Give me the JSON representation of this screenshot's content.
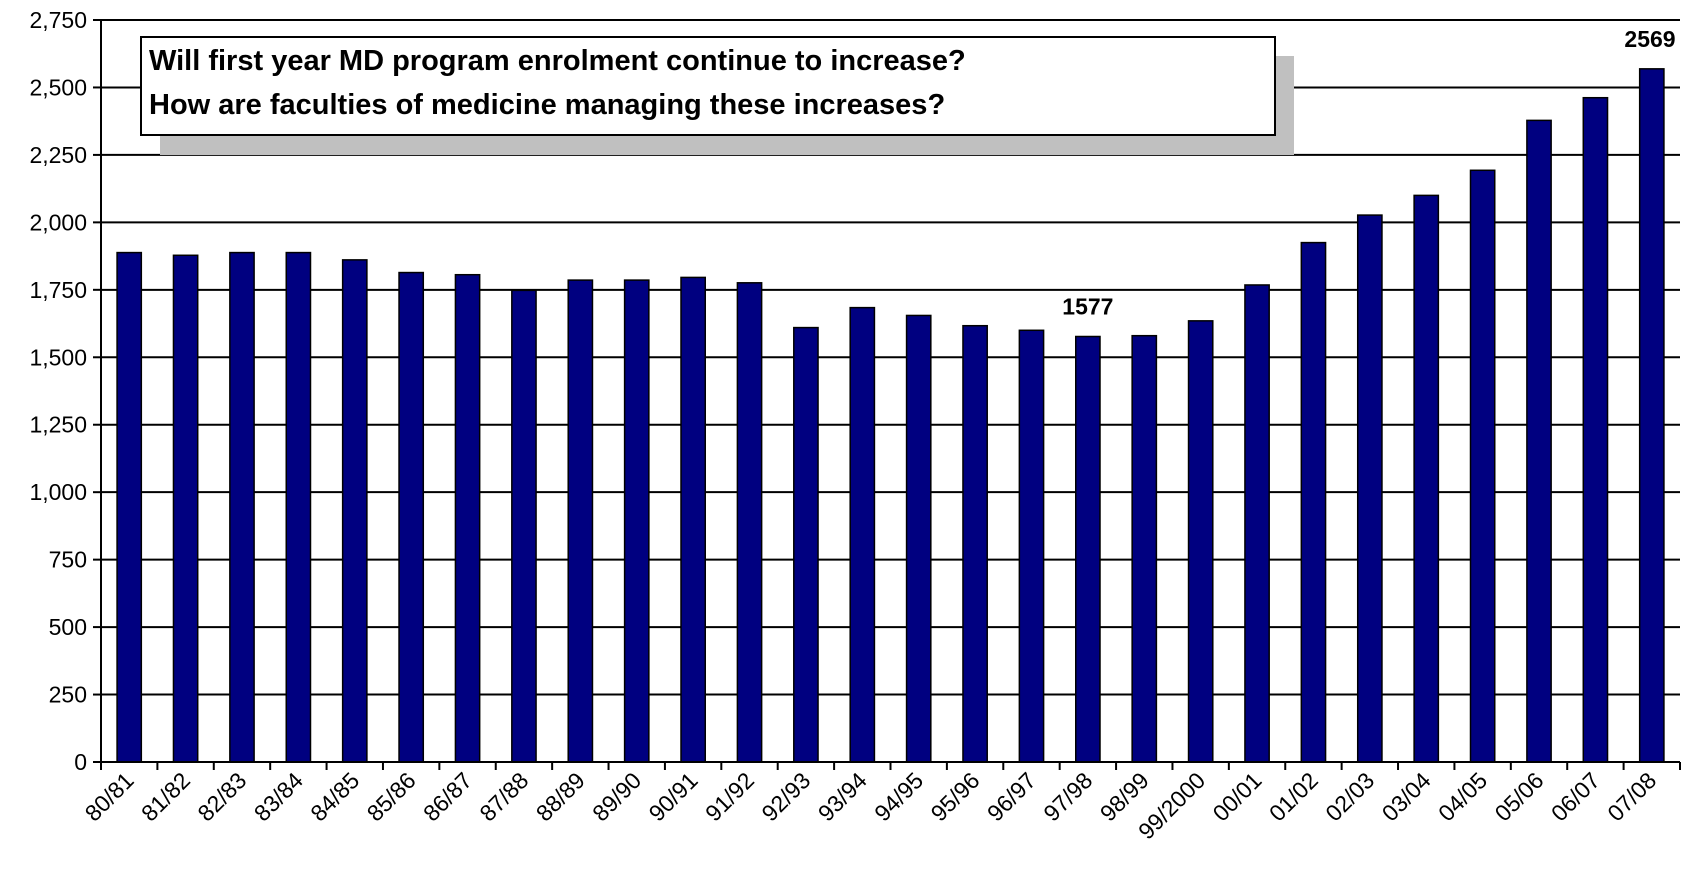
{
  "chart_data": {
    "type": "bar",
    "categories": [
      "80/81",
      "81/82",
      "82/83",
      "83/84",
      "84/85",
      "85/86",
      "86/87",
      "87/88",
      "88/89",
      "89/90",
      "90/91",
      "91/92",
      "92/93",
      "93/94",
      "94/95",
      "95/96",
      "96/97",
      "97/98",
      "98/99",
      "99/2000",
      "00/01",
      "01/02",
      "02/03",
      "03/04",
      "04/05",
      "05/06",
      "06/07",
      "07/08"
    ],
    "values": [
      1888,
      1878,
      1888,
      1888,
      1861,
      1814,
      1806,
      1748,
      1786,
      1786,
      1796,
      1776,
      1610,
      1684,
      1655,
      1617,
      1600,
      1577,
      1580,
      1635,
      1768,
      1925,
      2027,
      2100,
      2193,
      2378,
      2462,
      2569
    ],
    "ylim": [
      0,
      2750
    ],
    "yticks": [
      0,
      250,
      500,
      750,
      1000,
      1250,
      1500,
      1750,
      2000,
      2250,
      2500,
      2750
    ],
    "ytick_labels": [
      "0",
      "250",
      "500",
      "750",
      "1,000",
      "1,250",
      "1,500",
      "1,750",
      "2,000",
      "2,250",
      "2,500",
      "2,750"
    ],
    "data_labels": [
      {
        "category": "97/98",
        "text": "1577"
      },
      {
        "category": "07/08",
        "text": "2569"
      }
    ],
    "grid": true,
    "bar_color": "#000080",
    "annotation": {
      "line1": "Will first year MD program enrolment continue to increase?",
      "line2": "How are faculties of medicine managing these increases?"
    }
  }
}
